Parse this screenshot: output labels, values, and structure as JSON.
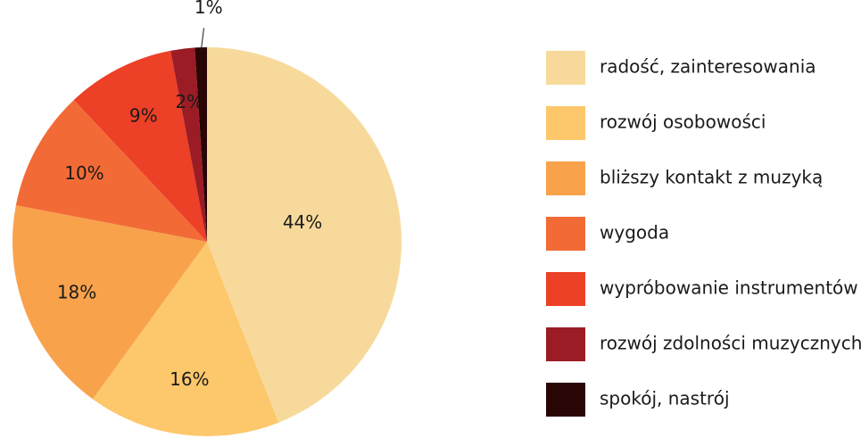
{
  "chart_data": {
    "type": "pie",
    "categories": [
      "radość, zainteresowania",
      "rozwój osobowości",
      "bliższy kontakt z muzyką",
      "wygoda",
      "wypróbowanie instrumentów",
      "rozwój zdolności muzycznych",
      "spokój, nastrój"
    ],
    "values": [
      44,
      16,
      18,
      10,
      9,
      2,
      1
    ],
    "value_labels": [
      "44%",
      "16%",
      "18%",
      "10%",
      "9%",
      "2%",
      "1%"
    ],
    "colors": [
      "#f7da9b",
      "#fdc76b",
      "#f8a24c",
      "#f26b36",
      "#ec4027",
      "#9b1c24",
      "#2a0506"
    ]
  }
}
